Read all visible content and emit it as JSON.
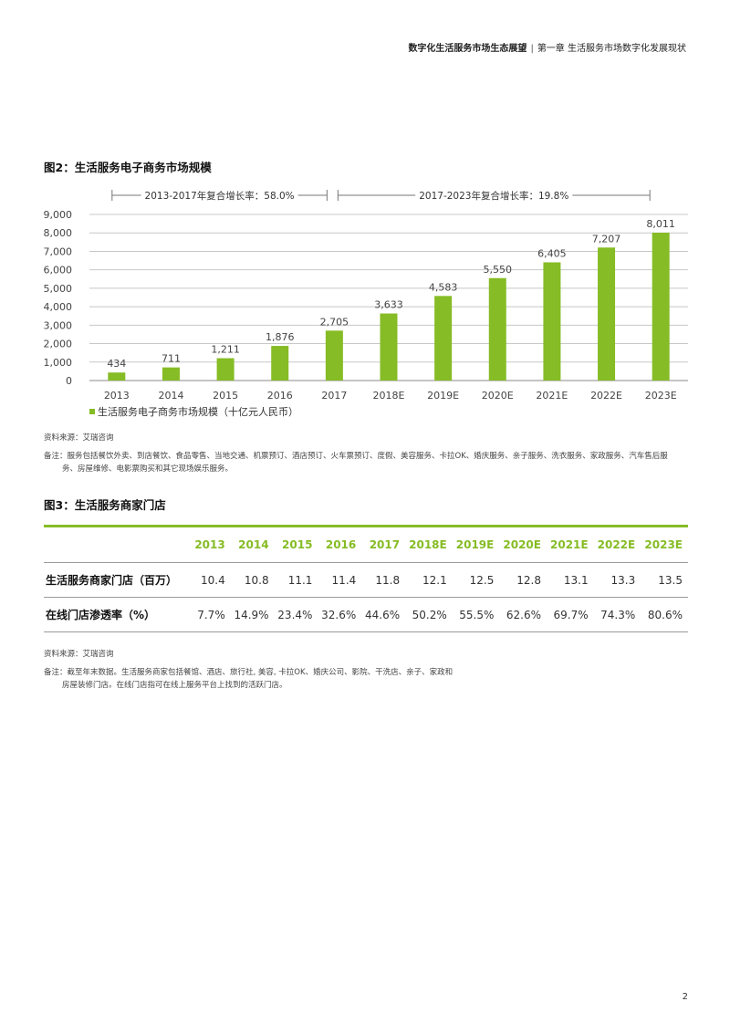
{
  "header": {
    "report_title": "数字化生活服务市场生态展望",
    "separator": "|",
    "chapter": "第一章 生活服务市场数字化发展现状"
  },
  "fig2": {
    "title": "图2：生活服务电子商务市场规模",
    "cagr_1": "2013-2017年复合增长率：58.0%",
    "cagr_2": "2017-2023年复合增长率：19.8%",
    "source": "资料来源：艾瑞咨询",
    "note_line1": "备注：服务包括餐饮外卖、到店餐饮、食品零售、当地交通、机票预订、酒店预订、火车票预订、度假、美容服务、卡拉OK、婚庆服务、亲子服务、洗衣服务、家政服务、汽车售后服",
    "note_line2": "务、房屋维修、电影票购买和其它现场娱乐服务。"
  },
  "chart_data": {
    "type": "bar",
    "title": "图2：生活服务电子商务市场规模",
    "categories": [
      "2013",
      "2014",
      "2015",
      "2016",
      "2017",
      "2018E",
      "2019E",
      "2020E",
      "2021E",
      "2022E",
      "2023E"
    ],
    "series": [
      {
        "name": "生活服务电子商务市场规模（十亿元人民币）",
        "values": [
          434,
          711,
          1211,
          1876,
          2705,
          3633,
          4583,
          5550,
          6405,
          7207,
          8011
        ]
      }
    ],
    "value_labels": [
      "434",
      "711",
      "1,211",
      "1,876",
      "2,705",
      "3,633",
      "4,583",
      "5,550",
      "6,405",
      "7,207",
      "8,011"
    ],
    "yticks": [
      "0",
      "1,000",
      "2,000",
      "3,000",
      "4,000",
      "5,000",
      "6,000",
      "7,000",
      "8,000",
      "9,000"
    ],
    "ylim": [
      0,
      9000
    ],
    "grid": true,
    "legend_position": "bottom-left",
    "bar_color": "#86bc25"
  },
  "fig3": {
    "title": "图3：生活服务商家门店",
    "years": [
      "2013",
      "2014",
      "2015",
      "2016",
      "2017",
      "2018E",
      "2019E",
      "2020E",
      "2021E",
      "2022E",
      "2023E"
    ],
    "rows": [
      {
        "label": "生活服务商家门店（百万）",
        "values": [
          "10.4",
          "10.8",
          "11.1",
          "11.4",
          "11.8",
          "12.1",
          "12.5",
          "12.8",
          "13.1",
          "13.3",
          "13.5"
        ]
      },
      {
        "label": "在线门店渗透率（%）",
        "values": [
          "7.7%",
          "14.9%",
          "23.4%",
          "32.6%",
          "44.6%",
          "50.2%",
          "55.5%",
          "62.6%",
          "69.7%",
          "74.3%",
          "80.6%"
        ]
      }
    ],
    "source": "资料来源：艾瑞咨询",
    "note_line1": "备注：截至年末数据。生活服务商家包括餐馆、酒店、旅行社, 美容, 卡拉OK、婚庆公司、影院、干洗店、亲子、家政和",
    "note_line2": "房屋装修门店。在线门店指可在线上服务平台上找到的活跃门店。"
  },
  "page_number": "2"
}
